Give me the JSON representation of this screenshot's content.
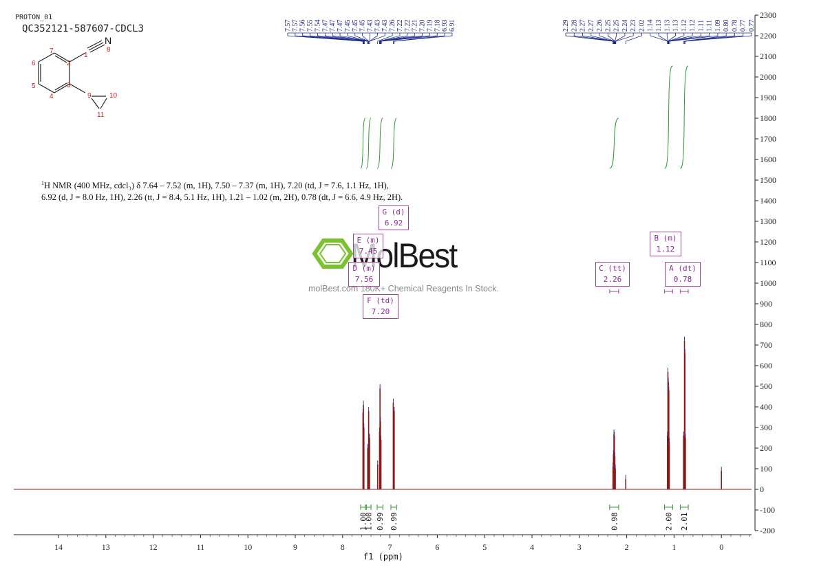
{
  "header": {
    "experiment": "PROTON_01",
    "sample": "QC352121-587607-CDCL3"
  },
  "nmr_description": {
    "nucleus_sup": "1",
    "line1": "H NMR (400 MHz, cdcl₃) δ 7.64 – 7.52 (m, 1H), 7.50 – 7.37 (m, 1H), 7.20 (td, J = 7.6, 1.1 Hz, 1H),",
    "line2": "6.92 (d, J = 8.0 Hz, 1H), 2.26 (tt, J = 8.4, 5.1 Hz, 1H), 1.21 – 1.02 (m, 2H), 0.78 (dt, J = 6.6, 4.9 Hz, 2H)."
  },
  "watermark": {
    "logo_text": "MolBest",
    "url_text": "molBest.com  180K+ Chemical Reagents In Stock."
  },
  "molecule": {
    "atom_labels": [
      "1",
      "2",
      "3",
      "4",
      "5",
      "6",
      "7",
      "8",
      "9",
      "10",
      "11"
    ],
    "nitrogen": "N"
  },
  "multiplets": [
    {
      "label": "G (d)",
      "shift": "6.92"
    },
    {
      "label": "E (m)",
      "shift": "7.45"
    },
    {
      "label": "D (m)",
      "shift": "7.56"
    },
    {
      "label": "F (td)",
      "shift": "7.20"
    },
    {
      "label": "C (tt)",
      "shift": "2.26"
    },
    {
      "label": "B (m)",
      "shift": "1.12"
    },
    {
      "label": "A (dt)",
      "shift": "0.78"
    }
  ],
  "colors": {
    "spectrum": "#8b1a1a",
    "peak_label": "#1a2a8a",
    "integral": "#2a9a2a",
    "multiplet_box": "#a040a0",
    "logo_green": "#7ac230"
  },
  "chart_data": {
    "type": "line",
    "title": "",
    "xlabel": "f1 (ppm)",
    "ylabel": "",
    "x_reversed": true,
    "xlim": [
      15.0,
      -0.8
    ],
    "ylim": [
      -200,
      2300
    ],
    "x_ticks": [
      14,
      13,
      12,
      11,
      10,
      9,
      8,
      7,
      6,
      5,
      4,
      3,
      2,
      1,
      0
    ],
    "y_ticks": [
      -200,
      -100,
      0,
      100,
      200,
      300,
      400,
      500,
      600,
      700,
      800,
      900,
      1000,
      1100,
      1200,
      1300,
      1400,
      1500,
      1600,
      1700,
      1800,
      1900,
      2000,
      2100,
      2200,
      2300
    ],
    "peak_labels_left": [
      "7.57",
      "7.57",
      "7.56",
      "7.55",
      "7.54",
      "7.47",
      "7.47",
      "7.47",
      "7.45",
      "7.45",
      "7.45",
      "7.43",
      "7.43",
      "7.43",
      "7.26",
      "7.22",
      "7.22",
      "7.21",
      "7.20",
      "7.19",
      "7.18",
      "6.93",
      "6.91"
    ],
    "peak_labels_right": [
      "2.29",
      "2.28",
      "2.27",
      "2.27",
      "2.26",
      "2.25",
      "2.25",
      "2.24",
      "2.23",
      "2.02",
      "1.14",
      "1.13",
      "1.13",
      "1.13",
      "1.12",
      "1.12",
      "1.11",
      "1.11",
      "1.09",
      "0.80",
      "0.78",
      "0.77",
      "0.77"
    ],
    "peaks": [
      {
        "x": 7.57,
        "y": 370
      },
      {
        "x": 7.56,
        "y": 410
      },
      {
        "x": 7.55,
        "y": 300
      },
      {
        "x": 7.47,
        "y": 200
      },
      {
        "x": 7.45,
        "y": 380
      },
      {
        "x": 7.43,
        "y": 250
      },
      {
        "x": 7.26,
        "y": 120
      },
      {
        "x": 7.22,
        "y": 280
      },
      {
        "x": 7.21,
        "y": 490
      },
      {
        "x": 7.2,
        "y": 330
      },
      {
        "x": 7.19,
        "y": 240
      },
      {
        "x": 6.93,
        "y": 420
      },
      {
        "x": 6.91,
        "y": 380
      },
      {
        "x": 2.29,
        "y": 110
      },
      {
        "x": 2.28,
        "y": 170
      },
      {
        "x": 2.27,
        "y": 270
      },
      {
        "x": 2.26,
        "y": 260
      },
      {
        "x": 2.25,
        "y": 160
      },
      {
        "x": 2.24,
        "y": 100
      },
      {
        "x": 2.02,
        "y": 50
      },
      {
        "x": 1.14,
        "y": 260
      },
      {
        "x": 1.13,
        "y": 570
      },
      {
        "x": 1.12,
        "y": 520
      },
      {
        "x": 1.11,
        "y": 480
      },
      {
        "x": 1.1,
        "y": 230
      },
      {
        "x": 0.8,
        "y": 260
      },
      {
        "x": 0.78,
        "y": 720
      },
      {
        "x": 0.77,
        "y": 660
      },
      {
        "x": 0.76,
        "y": 250
      },
      {
        "x": 0.0,
        "y": 90
      }
    ],
    "integrals": [
      {
        "from": 7.62,
        "to": 7.52,
        "value": "1.00"
      },
      {
        "from": 7.5,
        "to": 7.4,
        "value": "1.00"
      },
      {
        "from": 7.27,
        "to": 7.15,
        "value": "0.99"
      },
      {
        "from": 6.98,
        "to": 6.86,
        "value": "0.99"
      },
      {
        "from": 2.36,
        "to": 2.17,
        "value": "0.98"
      },
      {
        "from": 1.2,
        "to": 1.03,
        "value": "2.00"
      },
      {
        "from": 0.87,
        "to": 0.7,
        "value": "2.01"
      }
    ]
  }
}
